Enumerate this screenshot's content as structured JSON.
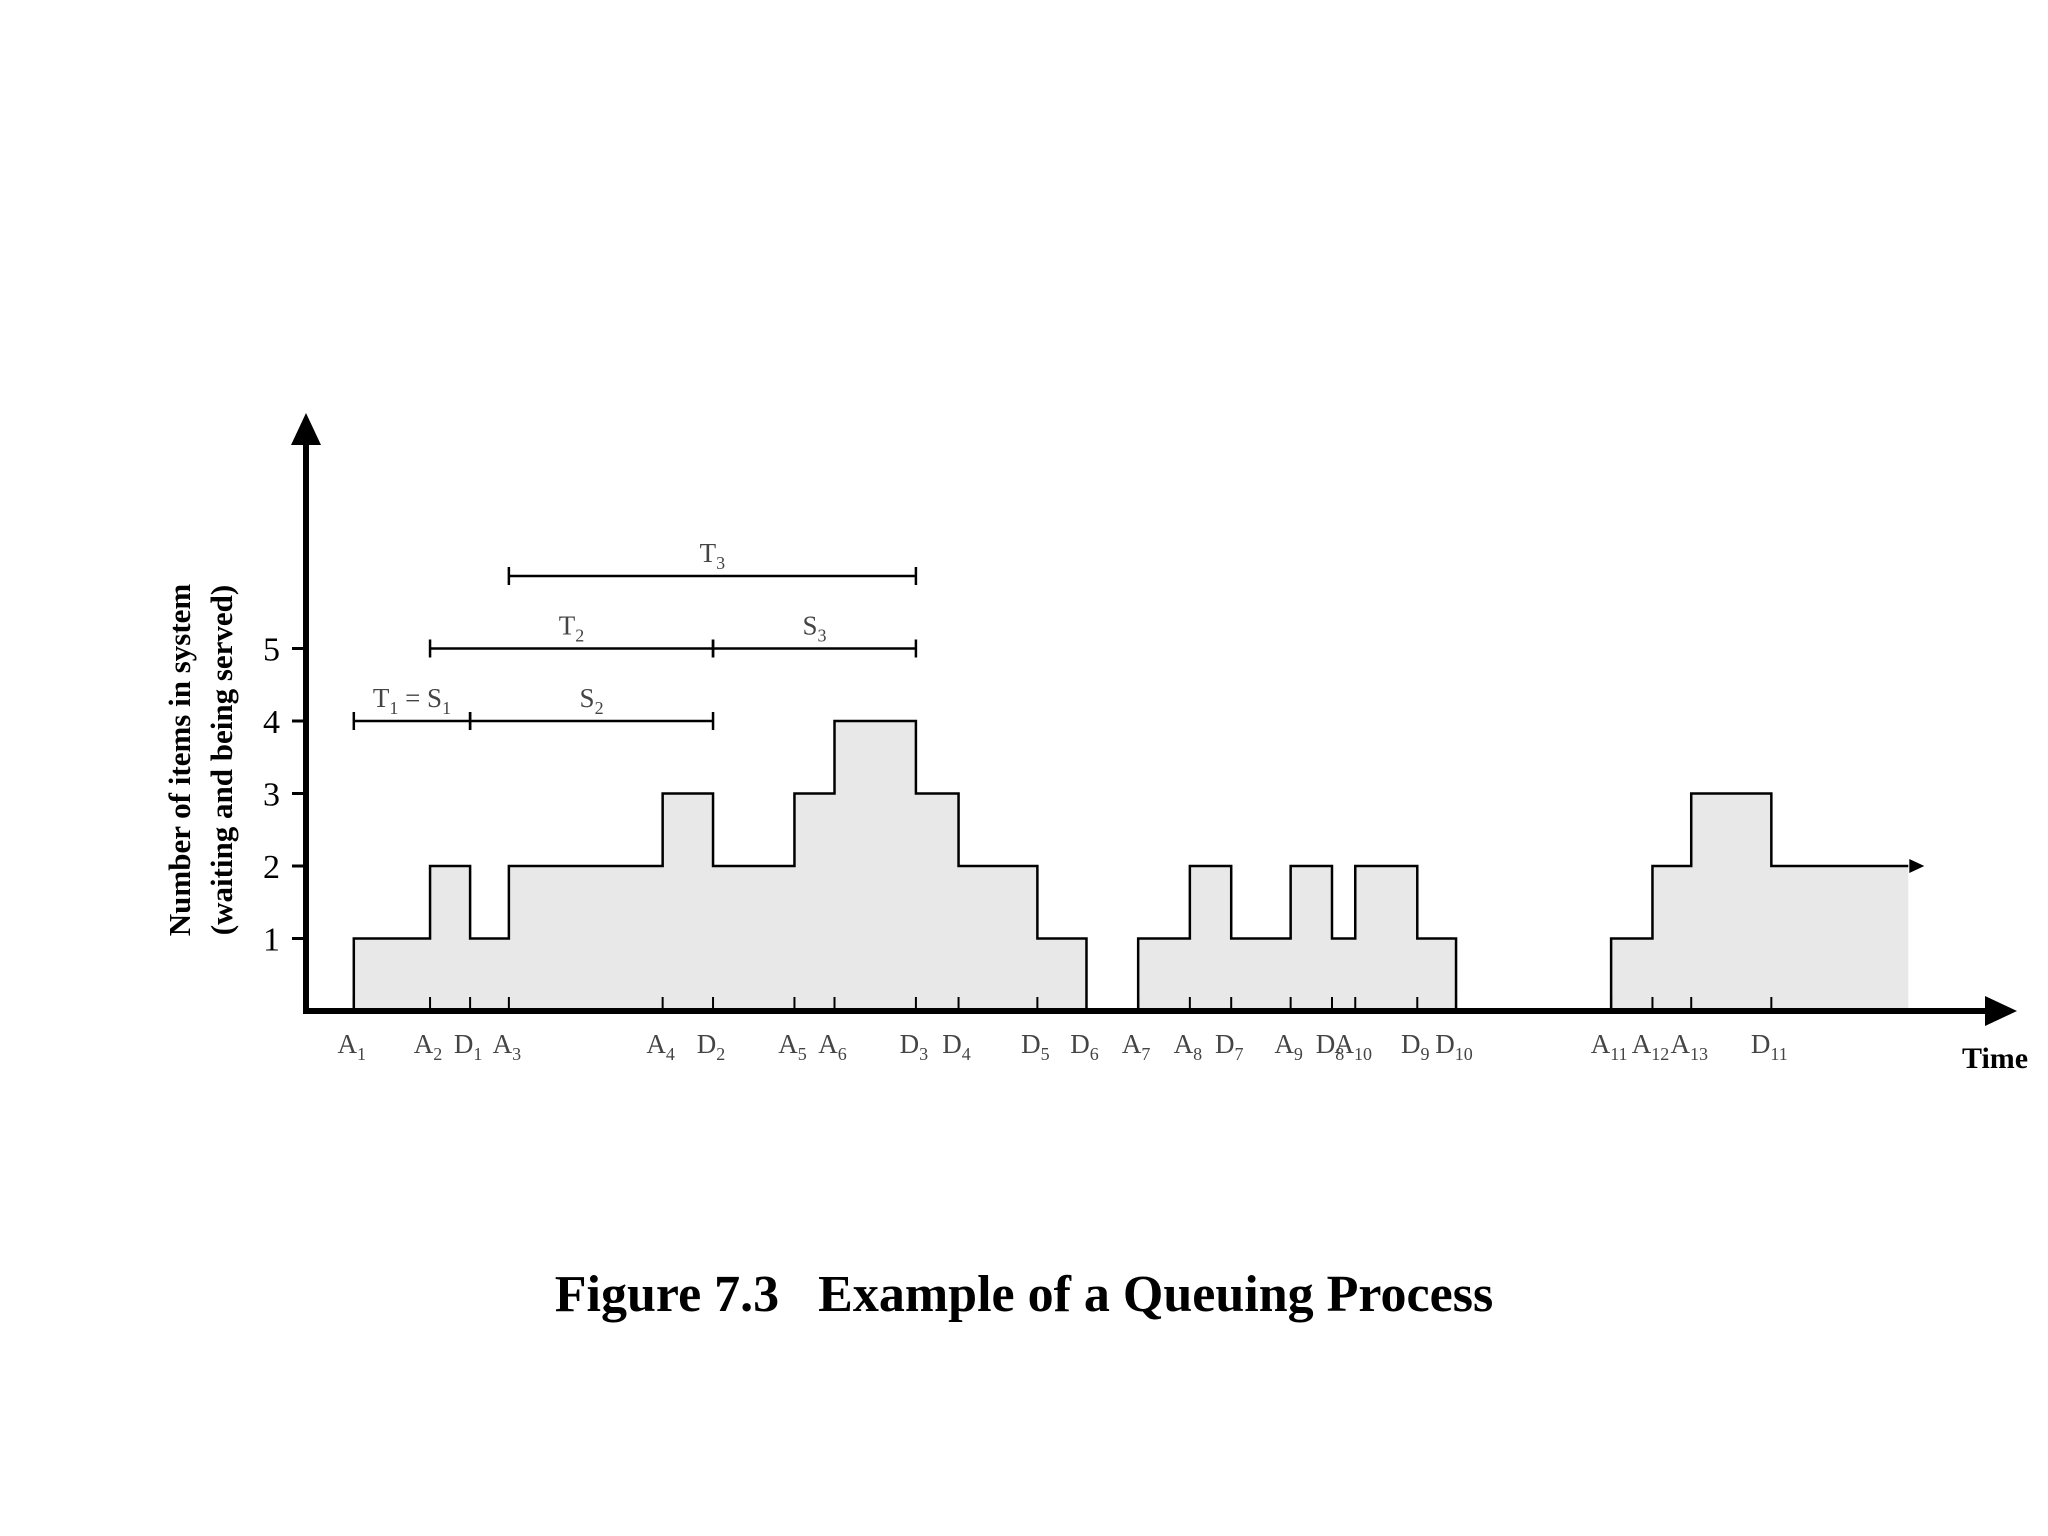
{
  "caption": "Figure 7.3   Example of a Queuing Process",
  "chart_data": {
    "type": "step-area",
    "xlabel": "Time",
    "ylabel_lines": [
      "Number of items in system",
      "(waiting and being served)"
    ],
    "y_ticks": [
      1,
      2,
      3,
      4,
      5
    ],
    "ylim": [
      0,
      7.9
    ],
    "xlim": [
      0,
      1280
    ],
    "fill_color": "#e8e8e8",
    "line_color": "#000000",
    "profile": [
      {
        "t": 0,
        "n": 0
      },
      {
        "t": 37,
        "n": 1
      },
      {
        "t": 96,
        "n": 2
      },
      {
        "t": 127,
        "n": 1
      },
      {
        "t": 157,
        "n": 2
      },
      {
        "t": 276,
        "n": 3
      },
      {
        "t": 315,
        "n": 2
      },
      {
        "t": 378,
        "n": 3
      },
      {
        "t": 409,
        "n": 4
      },
      {
        "t": 472,
        "n": 3
      },
      {
        "t": 505,
        "n": 2
      },
      {
        "t": 566,
        "n": 1
      },
      {
        "t": 604,
        "n": 0
      },
      {
        "t": 644,
        "n": 1
      },
      {
        "t": 684,
        "n": 2
      },
      {
        "t": 716,
        "n": 1
      },
      {
        "t": 762,
        "n": 2
      },
      {
        "t": 794,
        "n": 1
      },
      {
        "t": 812,
        "n": 2
      },
      {
        "t": 860,
        "n": 1
      },
      {
        "t": 890,
        "n": 0
      },
      {
        "t": 1010,
        "n": 1
      },
      {
        "t": 1042,
        "n": 2
      },
      {
        "t": 1072,
        "n": 3
      },
      {
        "t": 1134,
        "n": 2
      },
      {
        "t": 1240,
        "n": 2
      }
    ],
    "events": [
      {
        "main": "A",
        "sub": "1",
        "t": 37
      },
      {
        "main": "A",
        "sub": "2",
        "t": 96
      },
      {
        "main": "D",
        "sub": "1",
        "t": 127
      },
      {
        "main": "A",
        "sub": "3",
        "t": 157
      },
      {
        "main": "A",
        "sub": "4",
        "t": 276
      },
      {
        "main": "D",
        "sub": "2",
        "t": 315
      },
      {
        "main": "A",
        "sub": "5",
        "t": 378
      },
      {
        "main": "A",
        "sub": "6",
        "t": 409
      },
      {
        "main": "D",
        "sub": "3",
        "t": 472
      },
      {
        "main": "D",
        "sub": "4",
        "t": 505
      },
      {
        "main": "D",
        "sub": "5",
        "t": 566
      },
      {
        "main": "D",
        "sub": "6",
        "t": 604
      },
      {
        "main": "A",
        "sub": "7",
        "t": 644
      },
      {
        "main": "A",
        "sub": "8",
        "t": 684
      },
      {
        "main": "D",
        "sub": "7",
        "t": 716
      },
      {
        "main": "A",
        "sub": "9",
        "t": 762
      },
      {
        "main": "D",
        "sub": "8",
        "t": 794
      },
      {
        "main": "A",
        "sub": "10",
        "t": 812
      },
      {
        "main": "D",
        "sub": "9",
        "t": 860
      },
      {
        "main": "D",
        "sub": "10",
        "t": 890
      },
      {
        "main": "A",
        "sub": "11",
        "t": 1010
      },
      {
        "main": "A",
        "sub": "12",
        "t": 1042
      },
      {
        "main": "A",
        "sub": "13",
        "t": 1072
      },
      {
        "main": "D",
        "sub": "11",
        "t": 1134
      }
    ],
    "intervals": [
      {
        "main": "T",
        "sub": "3",
        "start": 157,
        "end": 472,
        "level": 6.0
      },
      {
        "main": "T",
        "sub": "2",
        "start": 96,
        "end": 315,
        "level": 5.0
      },
      {
        "main": "S",
        "sub": "3",
        "start": 315,
        "end": 472,
        "level": 5.0
      },
      {
        "main": "T",
        "sub": "1",
        "extra": " = S",
        "extra_sub": "1",
        "start": 37,
        "end": 127,
        "level": 4.0
      },
      {
        "main": "S",
        "sub": "2",
        "start": 127,
        "end": 315,
        "level": 4.0
      }
    ]
  }
}
